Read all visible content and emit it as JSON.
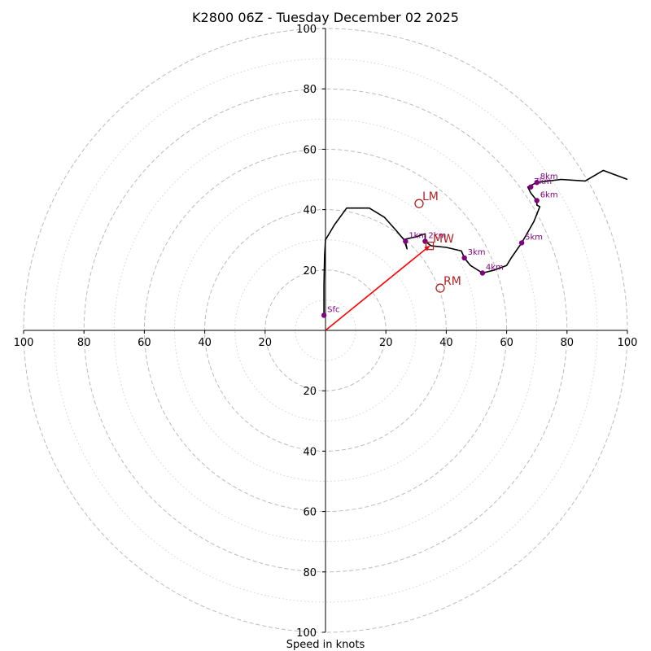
{
  "chart_data": {
    "type": "hodograph",
    "title": "K2800 06Z - Tuesday December 02 2025",
    "xlabel": "Speed in knots",
    "units": "knots",
    "max_speed": 100,
    "rings_major": [
      20,
      40,
      60,
      80,
      100
    ],
    "rings_minor": [
      10,
      30,
      50,
      70,
      90
    ],
    "x_tick_labels": [
      "100",
      "80",
      "60",
      "40",
      "20",
      "20",
      "40",
      "60",
      "80",
      "100"
    ],
    "x_tick_values": [
      -100,
      -80,
      -60,
      -40,
      -20,
      20,
      40,
      60,
      80,
      100
    ],
    "y_tick_labels": [
      "100",
      "80",
      "60",
      "40",
      "20",
      "20",
      "40",
      "60",
      "80",
      "100"
    ],
    "y_tick_values": [
      100,
      80,
      60,
      40,
      20,
      -20,
      -40,
      -60,
      -80,
      -100
    ],
    "wind_profile": [
      [
        -0.5,
        5
      ],
      [
        -0.5,
        15
      ],
      [
        -0.3,
        25
      ],
      [
        0,
        30
      ],
      [
        3,
        35
      ],
      [
        7,
        40.5
      ],
      [
        14.5,
        40.5
      ],
      [
        19.5,
        37.5
      ],
      [
        23.5,
        33
      ],
      [
        26,
        30
      ],
      [
        27,
        27
      ],
      [
        26.3,
        30.2
      ],
      [
        30,
        31
      ],
      [
        33,
        32
      ],
      [
        33,
        29.5
      ],
      [
        35,
        28
      ],
      [
        40,
        27.5
      ],
      [
        45,
        26.3
      ],
      [
        46,
        24
      ],
      [
        48,
        21.5
      ],
      [
        52,
        19
      ],
      [
        56,
        20
      ],
      [
        60,
        21.5
      ],
      [
        61.5,
        24
      ],
      [
        65,
        29
      ],
      [
        67,
        32.5
      ],
      [
        69,
        36
      ],
      [
        71,
        41
      ],
      [
        70,
        41.5
      ],
      [
        70,
        43
      ],
      [
        68,
        45.5
      ],
      [
        67,
        47.5
      ],
      [
        70,
        49
      ],
      [
        78,
        50
      ],
      [
        86,
        49.5
      ],
      [
        92,
        53
      ],
      [
        100,
        50
      ]
    ],
    "height_markers": [
      {
        "label": "Sfc",
        "u": -0.5,
        "v": 5
      },
      {
        "label": "1km",
        "u": 26.5,
        "v": 29.5
      },
      {
        "label": "2km",
        "u": 33,
        "v": 29.5
      },
      {
        "label": "3km",
        "u": 46,
        "v": 24
      },
      {
        "label": "4km",
        "u": 52,
        "v": 19
      },
      {
        "label": "5km",
        "u": 65,
        "v": 29
      },
      {
        "label": "6km",
        "u": 70,
        "v": 43
      },
      {
        "label": "7km",
        "u": 68,
        "v": 47.5
      },
      {
        "label": "8km",
        "u": 70,
        "v": 49
      }
    ],
    "storm_motions": [
      {
        "label": "LM",
        "u": 31,
        "v": 42,
        "marker": "circle"
      },
      {
        "label": "MW",
        "u": 34.5,
        "v": 28,
        "marker": "square"
      },
      {
        "label": "RM",
        "u": 38,
        "v": 14,
        "marker": "circle"
      }
    ],
    "shear_vector": {
      "from": [
        0,
        0
      ],
      "to": [
        34.5,
        28
      ]
    },
    "colors": {
      "profile": "#000000",
      "markers": "#800080",
      "storm_motion": "#b22222",
      "shear_vector": "#ff0000",
      "major_ring": "#bbbbbb",
      "minor_ring": "#d3d3d3"
    }
  }
}
